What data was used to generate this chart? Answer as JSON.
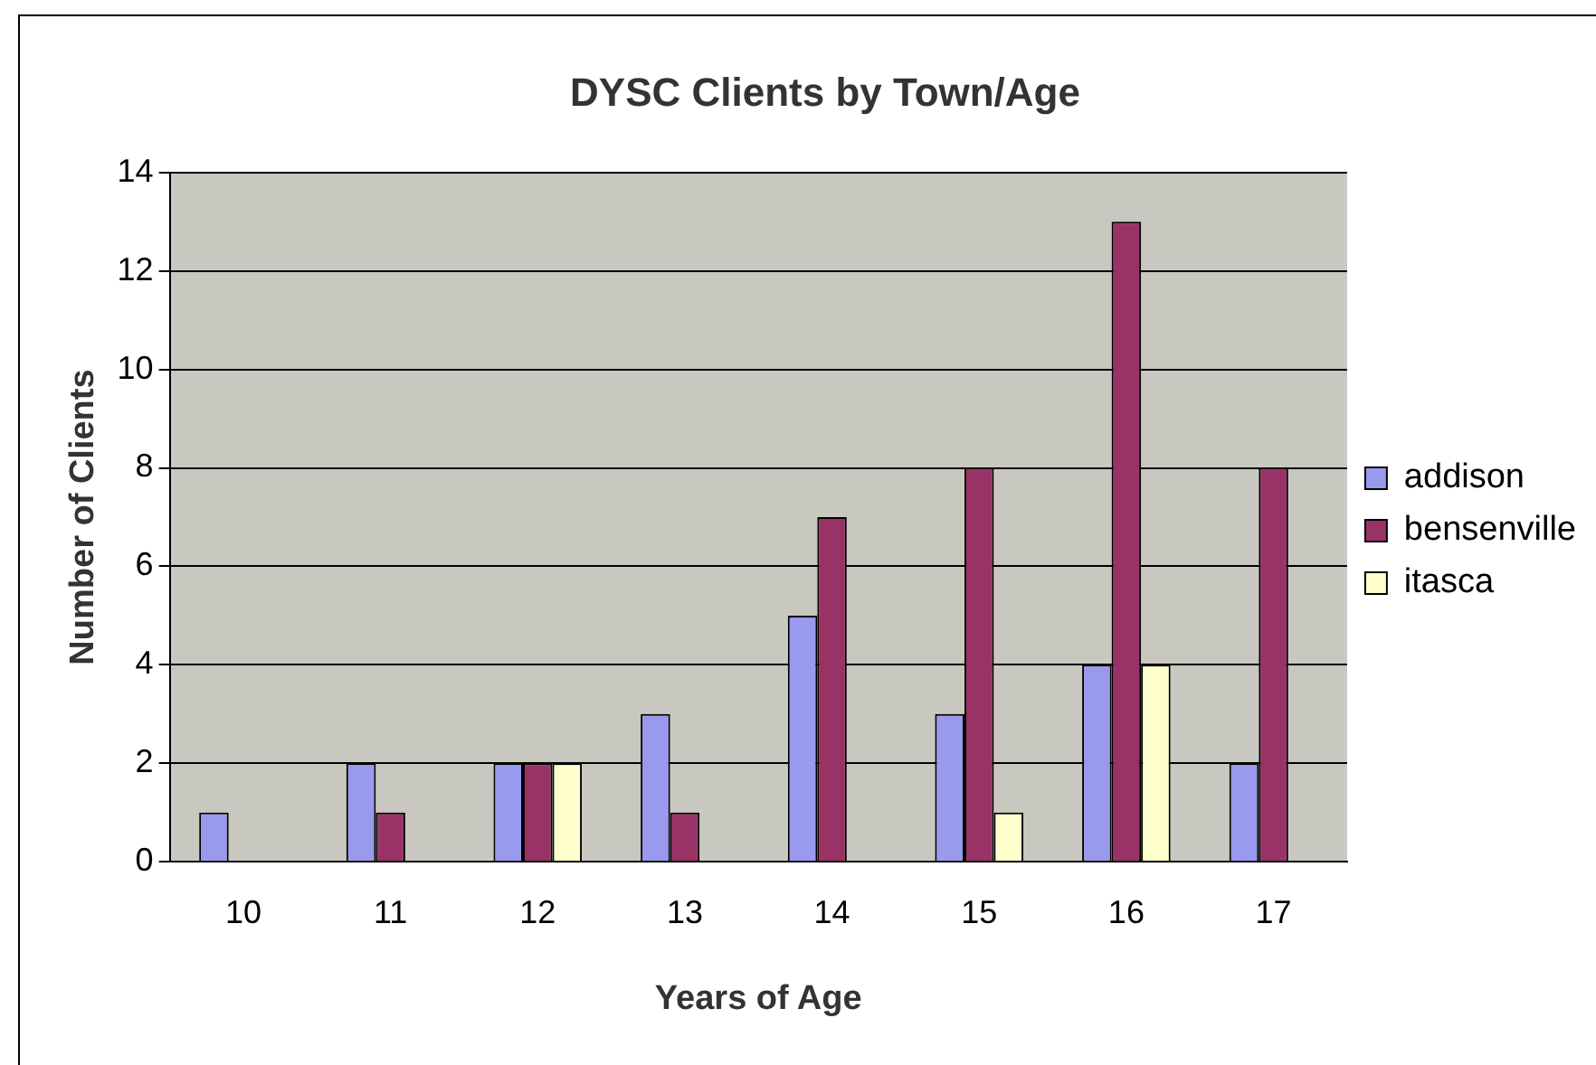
{
  "chart_data": {
    "type": "bar",
    "title": "DYSC Clients by Town/Age",
    "xlabel": "Years of Age",
    "ylabel": "Number of Clients",
    "categories": [
      "10",
      "11",
      "12",
      "13",
      "14",
      "15",
      "16",
      "17"
    ],
    "series": [
      {
        "name": "addison",
        "color": "#9999ee",
        "values": [
          1,
          2,
          2,
          3,
          5,
          3,
          4,
          2
        ]
      },
      {
        "name": "bensenville",
        "color": "#993366",
        "values": [
          0,
          1,
          2,
          1,
          7,
          8,
          13,
          8
        ]
      },
      {
        "name": "itasca",
        "color": "#ffffcc",
        "values": [
          0,
          0,
          2,
          0,
          0,
          1,
          4,
          0
        ]
      }
    ],
    "ylim": [
      0,
      14
    ],
    "yticks": [
      0,
      2,
      4,
      6,
      8,
      10,
      12,
      14
    ],
    "grid": "y",
    "legend": "right"
  }
}
